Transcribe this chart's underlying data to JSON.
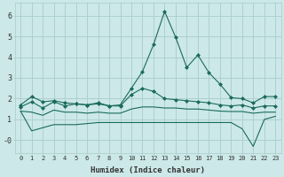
{
  "xlabel": "Humidex (Indice chaleur)",
  "background_color": "#cce8e8",
  "grid_color": "#aacccc",
  "line_color": "#1a6b5a",
  "xlim": [
    -0.5,
    23.5
  ],
  "ylim": [
    -0.6,
    6.6
  ],
  "xticks": [
    0,
    1,
    2,
    3,
    4,
    5,
    6,
    7,
    8,
    9,
    10,
    11,
    12,
    13,
    14,
    15,
    16,
    17,
    18,
    19,
    20,
    21,
    22,
    23
  ],
  "yticks": [
    0,
    1,
    2,
    3,
    4,
    5,
    6
  ],
  "ytick_labels": [
    "-0",
    "1",
    "2",
    "3",
    "4",
    "5",
    "6"
  ],
  "hours": [
    0,
    1,
    2,
    3,
    4,
    5,
    6,
    7,
    8,
    9,
    10,
    11,
    12,
    13,
    14,
    15,
    16,
    17,
    18,
    19,
    20,
    21,
    22,
    23
  ],
  "line_max": [
    1.7,
    2.1,
    1.85,
    1.9,
    1.8,
    1.75,
    1.7,
    1.75,
    1.65,
    1.7,
    2.5,
    3.3,
    4.6,
    6.2,
    4.95,
    3.5,
    4.1,
    3.25,
    2.7,
    2.05,
    2.0,
    1.8,
    2.1,
    2.1
  ],
  "line_q75": [
    1.6,
    1.85,
    1.55,
    1.85,
    1.65,
    1.75,
    1.7,
    1.8,
    1.65,
    1.65,
    2.2,
    2.5,
    2.35,
    2.0,
    1.95,
    1.9,
    1.85,
    1.8,
    1.7,
    1.65,
    1.7,
    1.55,
    1.65,
    1.65
  ],
  "line_mean": [
    1.4,
    1.35,
    1.2,
    1.45,
    1.35,
    1.35,
    1.3,
    1.35,
    1.3,
    1.3,
    1.5,
    1.6,
    1.6,
    1.55,
    1.55,
    1.5,
    1.5,
    1.45,
    1.4,
    1.38,
    1.38,
    1.3,
    1.35,
    1.35
  ],
  "line_min": [
    1.4,
    0.45,
    0.6,
    0.75,
    0.75,
    0.75,
    0.8,
    0.85,
    0.85,
    0.85,
    0.85,
    0.85,
    0.85,
    0.85,
    0.85,
    0.85,
    0.85,
    0.85,
    0.85,
    0.85,
    0.55,
    -0.3,
    1.0,
    1.15
  ]
}
